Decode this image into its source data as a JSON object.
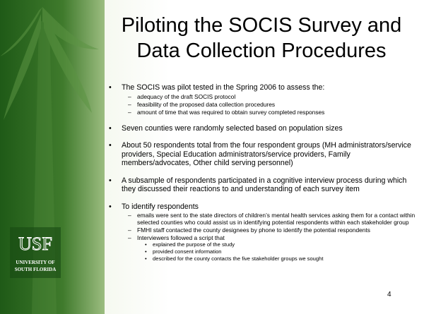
{
  "slide": {
    "title": [
      "Piloting the SOCIS Survey and",
      "Data Collection Procedures"
    ],
    "bullets": [
      {
        "text": "The SOCIS was pilot tested in the Spring 2006 to assess the:",
        "subs": [
          {
            "text": "adequacy of the draft SOCIS protocol"
          },
          {
            "text": "feasibility of the proposed data collection procedures"
          },
          {
            "text": "amount of time that was required to obtain survey completed responses"
          }
        ]
      },
      {
        "text": "Seven counties were randomly selected based on population sizes"
      },
      {
        "text": "About 50 respondents total from the four respondent groups (MH administrators/service providers, Special Education administrators/service providers, Family members/advocates, Other child serving personnel)"
      },
      {
        "text": "A subsample of respondents participated in a cognitive interview process during which they discussed their reactions to and understanding of each survey item"
      },
      {
        "text": "To identify respondents",
        "subs": [
          {
            "text": "emails were sent to the state directors of children’s mental health services asking them for a contact within selected counties who could assist us in identifying potential respondents within each stakeholder group"
          },
          {
            "text": "FMHI staff contacted the county designees by phone to identify the potential respondents"
          },
          {
            "text": "Interviewers followed a script that",
            "subs": [
              {
                "text": "explained the purpose of the study"
              },
              {
                "text": "provided consent information"
              },
              {
                "text": "described for the county contacts the five stakeholder groups we sought"
              }
            ]
          }
        ]
      }
    ],
    "page_number": "4",
    "logo": {
      "mark": "USF",
      "name": [
        "UNIVERSITY OF",
        "SOUTH FLORIDA"
      ]
    }
  }
}
